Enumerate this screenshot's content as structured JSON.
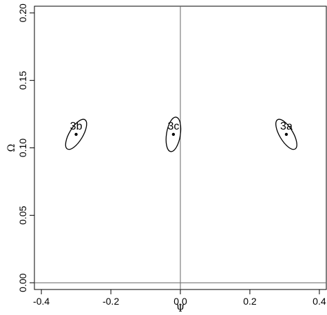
{
  "chart_data": {
    "type": "scatter",
    "title": "",
    "xlabel": "Ψ",
    "ylabel": "Ω",
    "xlim": [
      -0.42,
      0.42
    ],
    "ylim": [
      -0.005,
      0.205
    ],
    "x_ticks": [
      -0.4,
      -0.2,
      0.0,
      0.2,
      0.4
    ],
    "x_tick_labels": [
      "-0.4",
      "-0.2",
      "0.0",
      "0.2",
      "0.4"
    ],
    "y_ticks": [
      0.0,
      0.05,
      0.1,
      0.15,
      0.2
    ],
    "y_tick_labels": [
      "0.00",
      "0.05",
      "0.10",
      "0.15",
      "0.20"
    ],
    "reference_lines": {
      "x": 0,
      "y": 0
    },
    "grid": false,
    "points": [
      {
        "label": "3a",
        "x": 0.305,
        "y": 0.11,
        "ellipse": {
          "rx": 0.049,
          "ry": 0.0194,
          "rotation_deg": -59
        }
      },
      {
        "label": "3b",
        "x": -0.3,
        "y": 0.11,
        "ellipse": {
          "rx": 0.049,
          "ry": 0.0194,
          "rotation_deg": 59
        }
      },
      {
        "label": "3c",
        "x": -0.02,
        "y": 0.11,
        "ellipse": {
          "rx": 0.05,
          "ry": 0.0199,
          "rotation_deg": 81
        }
      }
    ]
  }
}
